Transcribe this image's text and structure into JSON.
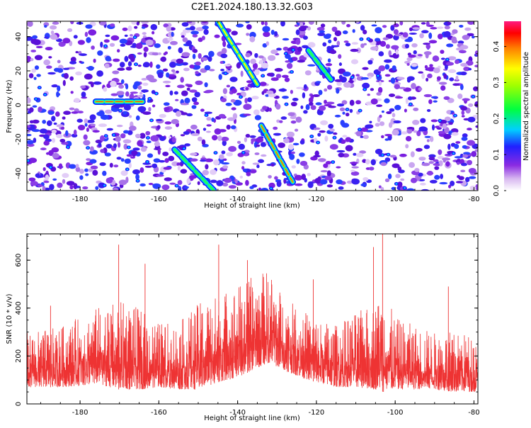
{
  "title": "C2E1.2024.180.13.32.G03",
  "chart_data": [
    {
      "type": "heatmap",
      "xlabel": "Height of straight line (km)",
      "ylabel": "Frequency (Hz)",
      "xlim": [
        -193.5,
        -79
      ],
      "ylim": [
        -50,
        49
      ],
      "xticks": [
        -180,
        -160,
        -140,
        -120,
        -100,
        -80
      ],
      "yticks": [
        -40,
        -20,
        0,
        20,
        40
      ],
      "colorbar": {
        "label": "Normalized spectral amplitude",
        "range": [
          0,
          0.47
        ],
        "ticks": [
          0.0,
          0.1,
          0.2,
          0.3,
          0.4
        ]
      },
      "features": [
        {
          "x": [
            -145,
            -135
          ],
          "y": [
            49,
            12
          ],
          "peak": 0.3
        },
        {
          "x": [
            -134,
            -126
          ],
          "y": [
            -12,
            -45
          ],
          "peak": 0.32
        },
        {
          "x": [
            -156,
            -146
          ],
          "y": [
            -26,
            -50
          ],
          "peak": 0.2
        },
        {
          "x": [
            -122,
            -116
          ],
          "y": [
            32,
            14
          ],
          "peak": 0.2
        },
        {
          "x": [
            -176,
            -164
          ],
          "y": [
            2,
            2
          ],
          "peak": 0.42
        }
      ]
    },
    {
      "type": "line",
      "xlabel": "Height of straight line (km)",
      "ylabel": "SNR (10 * v/v)",
      "xlim": [
        -193.5,
        -79
      ],
      "ylim": [
        0,
        710
      ],
      "xticks": [
        -180,
        -160,
        -140,
        -120,
        -100,
        -80
      ],
      "yticks": [
        0,
        200,
        400,
        600
      ],
      "color": "#ee3333",
      "envelope": {
        "x": [
          -193,
          -185,
          -175,
          -170,
          -165,
          -160,
          -155,
          -150,
          -145,
          -140,
          -135,
          -132,
          -128,
          -124,
          -120,
          -115,
          -110,
          -105,
          -103,
          -100,
          -95,
          -90,
          -85,
          -80
        ],
        "y_low": [
          70,
          70,
          80,
          60,
          60,
          70,
          60,
          60,
          90,
          110,
          150,
          170,
          140,
          110,
          90,
          70,
          70,
          60,
          50,
          60,
          60,
          60,
          50,
          50
        ],
        "y_high": [
          300,
          320,
          410,
          430,
          400,
          340,
          340,
          420,
          460,
          500,
          540,
          560,
          440,
          400,
          360,
          330,
          380,
          420,
          480,
          360,
          330,
          300,
          300,
          290
        ]
      },
      "spikes": [
        {
          "x": -170.2,
          "y": 665
        },
        {
          "x": -144.8,
          "y": 665
        },
        {
          "x": -103.2,
          "y": 710
        },
        {
          "x": -105.5,
          "y": 655
        },
        {
          "x": -137.5,
          "y": 600
        },
        {
          "x": -163.5,
          "y": 585
        },
        {
          "x": -187.5,
          "y": 410
        },
        {
          "x": -120.8,
          "y": 520
        },
        {
          "x": -86.5,
          "y": 490
        }
      ]
    }
  ]
}
